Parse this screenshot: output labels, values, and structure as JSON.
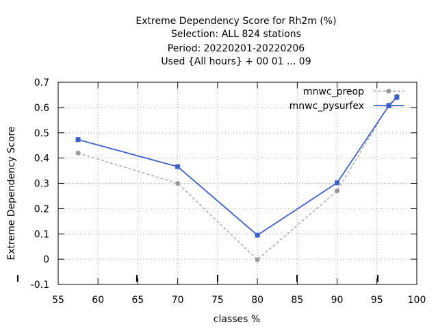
{
  "chart_data": {
    "type": "line",
    "title_lines": [
      "Extreme Dependency Score  for Rh2m (%)",
      "Selection: ALL    824 stations",
      "Period: 20220201-20220206",
      "Used {All hours} + 00 01 ... 09"
    ],
    "xlabel": "classes %",
    "ylabel": "Extreme Dependency Score",
    "xlim": [
      55,
      100
    ],
    "ylim": [
      -0.1,
      0.7
    ],
    "xticks": [
      "55",
      "60",
      "65",
      "70",
      "75",
      "80",
      "85",
      "90",
      "95",
      "100"
    ],
    "yticks": [
      "-0.1",
      "0",
      "0.1",
      "0.2",
      "0.3",
      "0.4",
      "0.5",
      "0.6",
      "0.7"
    ],
    "grid": true,
    "legend_position": "top-right",
    "series": [
      {
        "name": "mnwc_preop",
        "color": "#999999",
        "style": "dashed",
        "marker": "circle",
        "x": [
          57.5,
          70,
          80,
          90,
          96.5,
          97.5
        ],
        "y": [
          0.42,
          0.3,
          -0.002,
          0.27,
          0.61,
          0.645
        ]
      },
      {
        "name": "mnwc_pysurfex",
        "color": "#3b5fcd",
        "style": "solid",
        "marker": "square",
        "x": [
          57.5,
          70,
          80,
          90,
          96.5,
          97.5
        ],
        "y": [
          0.473,
          0.366,
          0.095,
          0.302,
          0.607,
          0.64
        ]
      }
    ]
  }
}
